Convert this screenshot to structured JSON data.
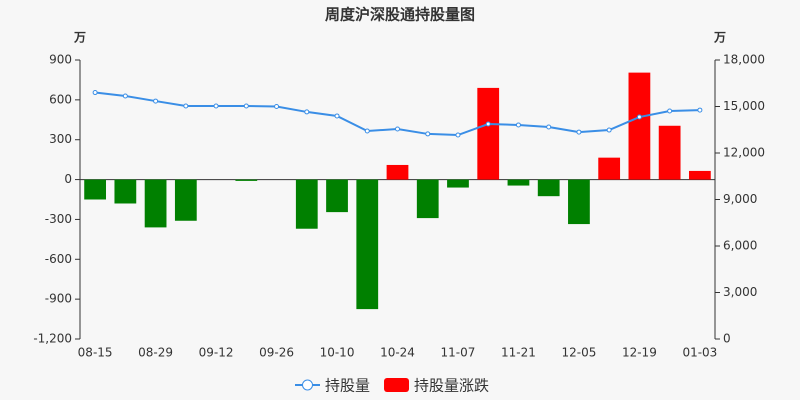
{
  "chart_data": {
    "type": "bar-line",
    "title": "周度沪深股通持股量图",
    "y_unit": "万",
    "y2_unit": "万",
    "categories": [
      "08-15",
      null,
      "08-29",
      null,
      "09-12",
      null,
      "09-26",
      null,
      "10-10",
      null,
      "10-24",
      null,
      "11-07",
      null,
      "11-21",
      null,
      "12-05",
      null,
      "12-19",
      null,
      "01-03"
    ],
    "series": [
      {
        "name": "持股量",
        "type": "line",
        "axis": "y2",
        "color": "#3a8ee6",
        "values": [
          15900,
          15680,
          15350,
          15030,
          15030,
          15030,
          15000,
          14650,
          14390,
          13420,
          13550,
          13230,
          13160,
          13870,
          13810,
          13680,
          13350,
          13480,
          14320,
          14710,
          14770
        ]
      },
      {
        "name": "持股量涨跌",
        "type": "bar",
        "axis": "y",
        "color": "#ff0000",
        "negative_color": "#008000",
        "values": [
          -150,
          -180,
          -360,
          -310,
          0,
          -10,
          0,
          -370,
          -245,
          -975,
          110,
          -290,
          -60,
          690,
          -45,
          -125,
          -335,
          165,
          805,
          405,
          65
        ]
      }
    ],
    "ylim": [
      -1200,
      900
    ],
    "yticks": [
      {
        "value": -1200,
        "label": "-1,200"
      },
      -900,
      -600,
      -300,
      0,
      300,
      600,
      900
    ],
    "y2lim": [
      0,
      18000
    ],
    "y2ticks": [
      0,
      {
        "value": 3000,
        "label": "3,000"
      },
      {
        "value": 6000,
        "label": "6,000"
      },
      {
        "value": 9000,
        "label": "9,000"
      },
      {
        "value": 12000,
        "label": "12,000"
      },
      {
        "value": 15000,
        "label": "15,000"
      },
      {
        "value": 18000,
        "label": "18,000"
      }
    ]
  }
}
